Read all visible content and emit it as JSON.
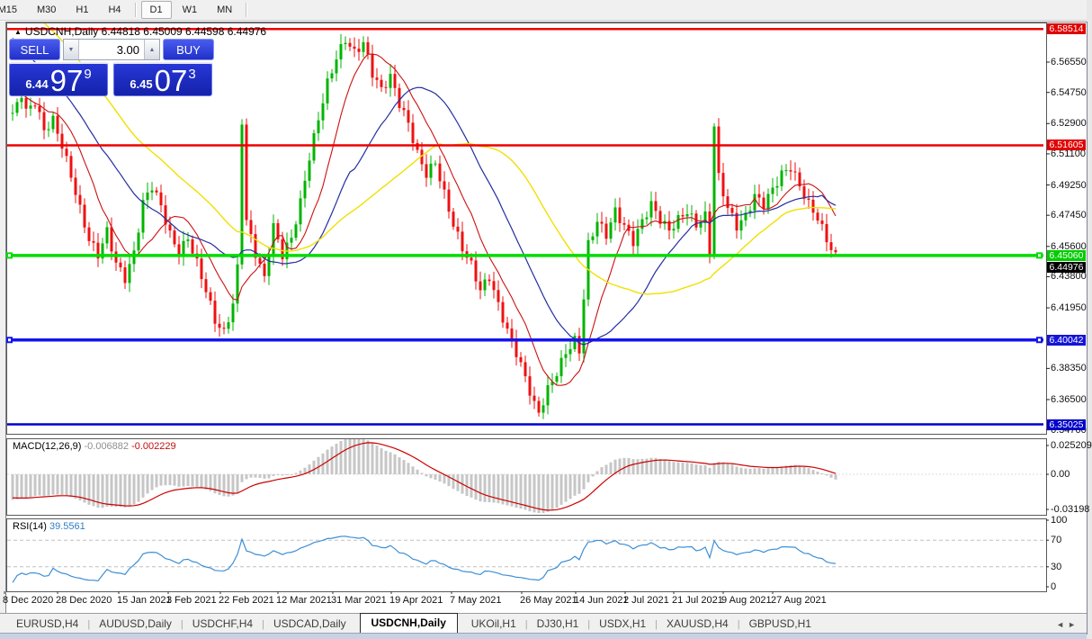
{
  "toolbar": {
    "timeframes": [
      {
        "label": "M15",
        "active": false,
        "clipped": true
      },
      {
        "label": "M30",
        "active": false
      },
      {
        "label": "H1",
        "active": false
      },
      {
        "label": "H4",
        "active": false
      },
      {
        "sep": true
      },
      {
        "label": "D1",
        "active": true
      },
      {
        "label": "W1",
        "active": false
      },
      {
        "label": "MN",
        "active": false
      },
      {
        "sep": true
      }
    ]
  },
  "chart": {
    "title_text": "USDCNH,Daily  6.44818 6.45009 6.44598 6.44976",
    "title_triangle": "▲"
  },
  "trade_panel": {
    "sell_label": "SELL",
    "buy_label": "BUY",
    "volume": "3.00",
    "spin_down": "▼",
    "spin_up": "▲",
    "sell_price": {
      "prefix": "6.44",
      "big": "97",
      "sup": "9"
    },
    "buy_price": {
      "prefix": "6.45",
      "big": "07",
      "sup": "3"
    }
  },
  "price_axis": {
    "ticks": [
      "6.56550",
      "6.54750",
      "6.52900",
      "6.51100",
      "6.49250",
      "6.47450",
      "6.45600",
      "6.43800",
      "6.41950",
      "6.38350",
      "6.36500",
      "6.34700"
    ],
    "badges": [
      {
        "label": "6.58514",
        "price": 6.58514,
        "bg": "#e00000"
      },
      {
        "label": "6.51605",
        "price": 6.51605,
        "bg": "#e00000"
      },
      {
        "label": "6.45060",
        "price": 6.4506,
        "bg": "#00cc00"
      },
      {
        "label": "6.44976",
        "price": 6.44976,
        "bg": "#000000",
        "stack_below": true
      },
      {
        "label": "6.40042",
        "price": 6.40042,
        "bg": "#1515d8"
      },
      {
        "label": "6.35025",
        "price": 6.35025,
        "bg": "#0000c8"
      }
    ]
  },
  "indicators": {
    "macd": {
      "name": "MACD(12,26,9)",
      "main_value": "-0.006882",
      "signal_value": "-0.002229",
      "ticks": [
        {
          "label": "0.025209",
          "v": 0.025209
        },
        {
          "label": "0.00",
          "v": 0
        },
        {
          "label": "-0.03198",
          "v": -0.03198
        }
      ]
    },
    "rsi": {
      "name": "RSI(14)",
      "value": "39.5561",
      "ticks": [
        {
          "label": "100",
          "v": 100
        },
        {
          "label": "70",
          "v": 70
        },
        {
          "label": "30",
          "v": 30
        },
        {
          "label": "0",
          "v": 0
        }
      ]
    }
  },
  "time_axis": {
    "labels": [
      {
        "text": "8 Dec 2020",
        "x": 3
      },
      {
        "text": "28 Dec 2020",
        "x": 62
      },
      {
        "text": "15 Jan 2021",
        "x": 130
      },
      {
        "text": "3 Feb 2021",
        "x": 185
      },
      {
        "text": "22 Feb 2021",
        "x": 243
      },
      {
        "text": "12 Mar 2021",
        "x": 307
      },
      {
        "text": "31 Mar 2021",
        "x": 368
      },
      {
        "text": "19 Apr 2021",
        "x": 433
      },
      {
        "text": "7 May 2021",
        "x": 500
      },
      {
        "text": "26 May 2021",
        "x": 578
      },
      {
        "text": "14 Jun 2021",
        "x": 638
      },
      {
        "text": "2 Jul 2021",
        "x": 693
      },
      {
        "text": "21 Jul 2021",
        "x": 747
      },
      {
        "text": "9 Aug 2021",
        "x": 802
      },
      {
        "text": "27 Aug 2021",
        "x": 857
      }
    ]
  },
  "tabs": {
    "items": [
      {
        "label": "EURUSD,H4",
        "active": false
      },
      {
        "label": "AUDUSD,Daily",
        "active": false
      },
      {
        "label": "USDCHF,H4",
        "active": false
      },
      {
        "label": "USDCAD,Daily",
        "active": false
      },
      {
        "label": "USDCNH,Daily",
        "active": true
      },
      {
        "label": "UKOil,H1",
        "active": false
      },
      {
        "label": "DJ30,H1",
        "active": false
      },
      {
        "label": "USDX,H1",
        "active": false
      },
      {
        "label": "XAUUSD,H4",
        "active": false
      },
      {
        "label": "GBPUSD,H1",
        "active": false
      }
    ],
    "nav_left": "◄",
    "nav_right": "►"
  },
  "chart_data": {
    "type": "candlestick",
    "symbol": "USDCNH",
    "timeframe": "Daily",
    "ohlc_display": {
      "open": 6.44818,
      "high": 6.45009,
      "low": 6.44598,
      "close": 6.44976
    },
    "main": {
      "ylim": [
        6.3452,
        6.5885
      ],
      "grid": false,
      "hlines": [
        {
          "price": 6.58514,
          "color": "#ee0000",
          "width": 2.5,
          "handles": false
        },
        {
          "price": 6.51605,
          "color": "#ee0000",
          "width": 2.5,
          "handles": false
        },
        {
          "price": 6.4506,
          "color": "#00dd00",
          "width": 3.5,
          "handles": true
        },
        {
          "price": 6.40042,
          "color": "#1515ee",
          "width": 3.5,
          "handles": true
        },
        {
          "price": 6.35025,
          "color": "#0000cc",
          "width": 2.5,
          "handles": false
        }
      ],
      "moving_averages": [
        {
          "period": 10,
          "color": "#cc1111",
          "w": 1.1
        },
        {
          "period": 25,
          "color": "#232fa0",
          "w": 1.2
        },
        {
          "period": 45,
          "color": "#f0e000",
          "w": 1.4
        }
      ],
      "candles": {
        "count": 184,
        "up_color": "#00b400",
        "down_color": "#ee1111",
        "zigzag": 0.0028,
        "wick_base": 0.0018,
        "wick_var": 0.0042,
        "close_waypoints": [
          [
            -60,
            6.7
          ],
          [
            -40,
            6.655
          ],
          [
            -25,
            6.62
          ],
          [
            -12,
            6.585
          ],
          [
            -6,
            6.558
          ],
          [
            -1,
            6.538
          ],
          [
            0,
            6.534
          ],
          [
            2,
            6.547
          ],
          [
            3,
            6.536
          ],
          [
            5,
            6.542
          ],
          [
            7,
            6.525
          ],
          [
            9,
            6.531
          ],
          [
            11,
            6.516
          ],
          [
            13,
            6.498
          ],
          [
            15,
            6.478
          ],
          [
            17,
            6.46
          ],
          [
            19,
            6.451
          ],
          [
            21,
            6.465
          ],
          [
            23,
            6.446
          ],
          [
            25,
            6.437
          ],
          [
            27,
            6.452
          ],
          [
            29,
            6.482
          ],
          [
            31,
            6.492
          ],
          [
            33,
            6.48
          ],
          [
            35,
            6.463
          ],
          [
            37,
            6.452
          ],
          [
            39,
            6.461
          ],
          [
            41,
            6.446
          ],
          [
            43,
            6.43
          ],
          [
            45,
            6.412
          ],
          [
            47,
            6.4045
          ],
          [
            49,
            6.422
          ],
          [
            50,
            6.443
          ],
          [
            51,
            6.531
          ],
          [
            52,
            6.471
          ],
          [
            54,
            6.452
          ],
          [
            56,
            6.437
          ],
          [
            58,
            6.468
          ],
          [
            60,
            6.451
          ],
          [
            62,
            6.461
          ],
          [
            64,
            6.482
          ],
          [
            66,
            6.509
          ],
          [
            68,
            6.532
          ],
          [
            70,
            6.553
          ],
          [
            72,
            6.568
          ],
          [
            74,
            6.579
          ],
          [
            76,
            6.571
          ],
          [
            78,
            6.577
          ],
          [
            80,
            6.559
          ],
          [
            82,
            6.549
          ],
          [
            84,
            6.557
          ],
          [
            86,
            6.541
          ],
          [
            88,
            6.529
          ],
          [
            90,
            6.511
          ],
          [
            92,
            6.499
          ],
          [
            94,
            6.506
          ],
          [
            96,
            6.487
          ],
          [
            98,
            6.469
          ],
          [
            100,
            6.455
          ],
          [
            102,
            6.445
          ],
          [
            104,
            6.43
          ],
          [
            106,
            6.438
          ],
          [
            108,
            6.421
          ],
          [
            110,
            6.406
          ],
          [
            112,
            6.393
          ],
          [
            114,
            6.378
          ],
          [
            116,
            6.362
          ],
          [
            117,
            6.357
          ],
          [
            119,
            6.371
          ],
          [
            121,
            6.381
          ],
          [
            123,
            6.393
          ],
          [
            125,
            6.4
          ],
          [
            126,
            6.394
          ],
          [
            128,
            6.457
          ],
          [
            130,
            6.471
          ],
          [
            132,
            6.463
          ],
          [
            134,
            6.477
          ],
          [
            136,
            6.468
          ],
          [
            138,
            6.459
          ],
          [
            140,
            6.471
          ],
          [
            142,
            6.481
          ],
          [
            144,
            6.472
          ],
          [
            146,
            6.4655
          ],
          [
            148,
            6.472
          ],
          [
            150,
            6.477
          ],
          [
            152,
            6.4685
          ],
          [
            154,
            6.474
          ],
          [
            155,
            6.452
          ],
          [
            156,
            6.528
          ],
          [
            157,
            6.497
          ],
          [
            159,
            6.479
          ],
          [
            161,
            6.468
          ],
          [
            163,
            6.474
          ],
          [
            165,
            6.486
          ],
          [
            167,
            6.481
          ],
          [
            169,
            6.49
          ],
          [
            171,
            6.499
          ],
          [
            173,
            6.503
          ],
          [
            175,
            6.492
          ],
          [
            177,
            6.481
          ],
          [
            179,
            6.473
          ],
          [
            181,
            6.46
          ],
          [
            183,
            6.4498
          ]
        ]
      }
    },
    "macd": {
      "params": [
        12,
        26,
        9
      ],
      "main_value": -0.006882,
      "signal_value": -0.002229,
      "ylim": [
        -0.0335,
        0.0285
      ],
      "hist_color": "#c6c6c6",
      "signal_color": "#cc0000"
    },
    "rsi": {
      "period": 14,
      "value": 39.5561,
      "ylim": [
        0,
        100
      ],
      "levels": [
        70,
        30
      ],
      "line_color": "#3d8fd6"
    }
  }
}
